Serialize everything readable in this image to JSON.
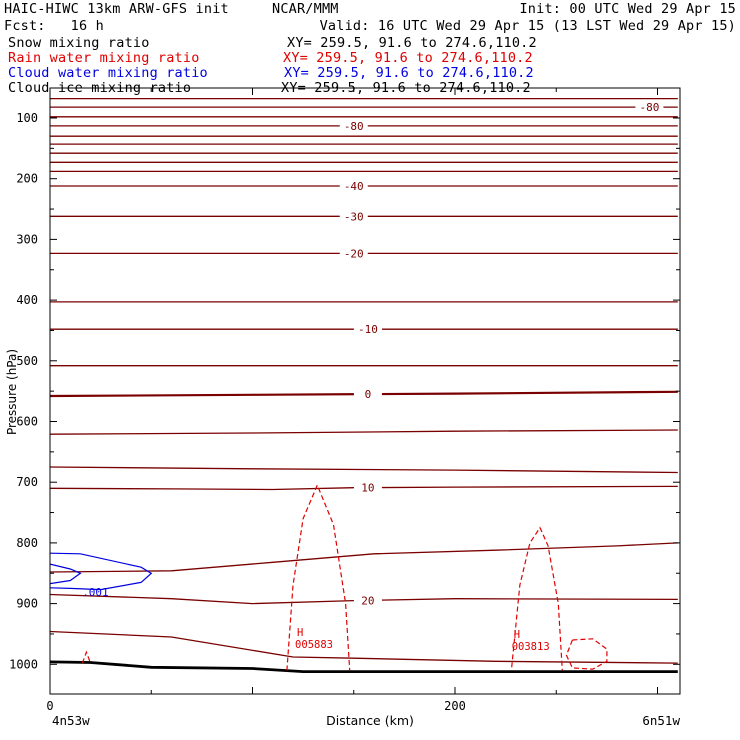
{
  "header": {
    "model": "HAIC-HIWC 13km ARW-GFS init",
    "org": "NCAR/MMM",
    "init": "Init: 00 UTC Wed 29 Apr 15",
    "fcst": "Fcst:   16 h",
    "valid": "Valid: 16 UTC Wed 29 Apr 15 (13 LST Wed 29 Apr 15)"
  },
  "legend": [
    {
      "name": "Snow mixing ratio",
      "xy": "XY= 259.5, 91.6 to 274.6,110.2",
      "color": "#000000"
    },
    {
      "name": "Rain water mixing ratio",
      "xy": "XY= 259.5, 91.6 to 274.6,110.2",
      "color": "#e00000"
    },
    {
      "name": "Cloud water mixing ratio",
      "xy": "XY= 259.5, 91.6 to 274.6,110.2",
      "color": "#0000e0"
    },
    {
      "name": "Cloud ice mixing ratio",
      "xy": "XY= 259.5, 91.6 to 274.6,110.2",
      "color": "#000000"
    }
  ],
  "colors": {
    "temperature": "#7a0000",
    "rain": "#e00000",
    "cloud_water": "#0000e0",
    "terrain": "#000000"
  },
  "chart_data": {
    "type": "line",
    "xlabel": "Distance (km)",
    "ylabel": "Pressure (hPa)",
    "xlim": [
      0,
      310
    ],
    "ylim": [
      1050,
      50
    ],
    "x_ticks": [
      0,
      200
    ],
    "y_ticks": [
      100,
      200,
      300,
      400,
      500,
      600,
      700,
      800,
      900,
      1000
    ],
    "x_endpoint_labels": [
      "4n53w",
      "6n51w"
    ],
    "temperature_contours": [
      {
        "x": [
          0,
          310
        ],
        "p": [
          68,
          68
        ]
      },
      {
        "x": [
          0,
          310
        ],
        "p": [
          82,
          82
        ],
        "label": "-80",
        "label_x": 296
      },
      {
        "x": [
          0,
          310
        ],
        "p": [
          98,
          98
        ]
      },
      {
        "x": [
          0,
          310
        ],
        "p": [
          113,
          113
        ],
        "label": "-80",
        "label_x": 150
      },
      {
        "x": [
          0,
          310
        ],
        "p": [
          130,
          130
        ]
      },
      {
        "x": [
          0,
          310
        ],
        "p": [
          143,
          143
        ]
      },
      {
        "x": [
          0,
          310
        ],
        "p": [
          158,
          158
        ]
      },
      {
        "x": [
          0,
          310
        ],
        "p": [
          173,
          173
        ]
      },
      {
        "x": [
          0,
          310
        ],
        "p": [
          188,
          188
        ]
      },
      {
        "x": [
          0,
          310
        ],
        "p": [
          212,
          212
        ],
        "label": "-40",
        "label_x": 150
      },
      {
        "x": [
          0,
          310
        ],
        "p": [
          262,
          262
        ],
        "label": "-30",
        "label_x": 150
      },
      {
        "x": [
          0,
          310
        ],
        "p": [
          323,
          323
        ],
        "label": "-20",
        "label_x": 150
      },
      {
        "x": [
          0,
          310
        ],
        "p": [
          403,
          403
        ]
      },
      {
        "x": [
          0,
          310
        ],
        "p": [
          448,
          448
        ],
        "label": "-10",
        "label_x": 157
      },
      {
        "x": [
          0,
          310
        ],
        "p": [
          508,
          508
        ]
      },
      {
        "x": [
          0,
          100,
          200,
          310
        ],
        "p": [
          558,
          556,
          554,
          551
        ],
        "label": "0",
        "label_x": 157
      },
      {
        "x": [
          0,
          100,
          200,
          310
        ],
        "p": [
          621,
          619,
          616,
          614
        ]
      },
      {
        "x": [
          0,
          100,
          200,
          310
        ],
        "p": [
          675,
          678,
          680,
          684
        ]
      },
      {
        "x": [
          0,
          60,
          110,
          150,
          200,
          310
        ],
        "p": [
          710,
          711,
          712,
          709,
          708,
          707
        ],
        "label": "10",
        "label_x": 157
      },
      {
        "x": [
          0,
          60,
          110,
          160,
          220,
          280,
          310
        ],
        "p": [
          848,
          846,
          832,
          818,
          812,
          805,
          800
        ]
      },
      {
        "x": [
          0,
          60,
          100,
          150,
          200,
          310
        ],
        "p": [
          885,
          892,
          900,
          895,
          892,
          893
        ],
        "label": "20",
        "label_x": 157
      },
      {
        "x": [
          0,
          60,
          120,
          150,
          220,
          310
        ],
        "p": [
          946,
          955,
          988,
          990,
          995,
          998
        ]
      }
    ],
    "terrain": {
      "x": [
        0,
        20,
        50,
        100,
        125,
        310
      ],
      "p": [
        996,
        997,
        1005,
        1007,
        1012,
        1012
      ]
    },
    "rain_contours": [
      {
        "x": [
          117,
          120,
          125,
          132,
          140,
          146,
          148
        ],
        "p": [
          1010,
          870,
          760,
          705,
          770,
          900,
          1010
        ]
      },
      {
        "x": [
          228,
          232,
          237,
          242,
          246,
          251,
          253
        ],
        "p": [
          1005,
          870,
          800,
          775,
          805,
          900,
          1010
        ]
      },
      {
        "closed": true,
        "x": [
          258,
          268,
          275,
          275,
          268,
          258,
          255,
          258
        ],
        "p": [
          960,
          958,
          975,
          995,
          1008,
          1006,
          985,
          960
        ]
      },
      {
        "x": [
          16,
          18,
          20
        ],
        "p": [
          998,
          980,
          998
        ]
      }
    ],
    "rain_highs": [
      {
        "label": "H",
        "value": "005883",
        "x": 122,
        "p": 960
      },
      {
        "label": "H",
        "value": "003813",
        "x": 229,
        "p": 963
      }
    ],
    "cloud_water_contours": [
      {
        "x": [
          0,
          15,
          45,
          50,
          45,
          25,
          10,
          0
        ],
        "p": [
          817,
          818,
          840,
          850,
          865,
          877,
          875,
          874
        ]
      },
      {
        "x": [
          0,
          10,
          15,
          10,
          0
        ],
        "p": [
          835,
          843,
          850,
          862,
          867
        ]
      }
    ],
    "cloud_water_labels": [
      {
        "value": ".001",
        "x": 8,
        "p": 874
      }
    ]
  }
}
